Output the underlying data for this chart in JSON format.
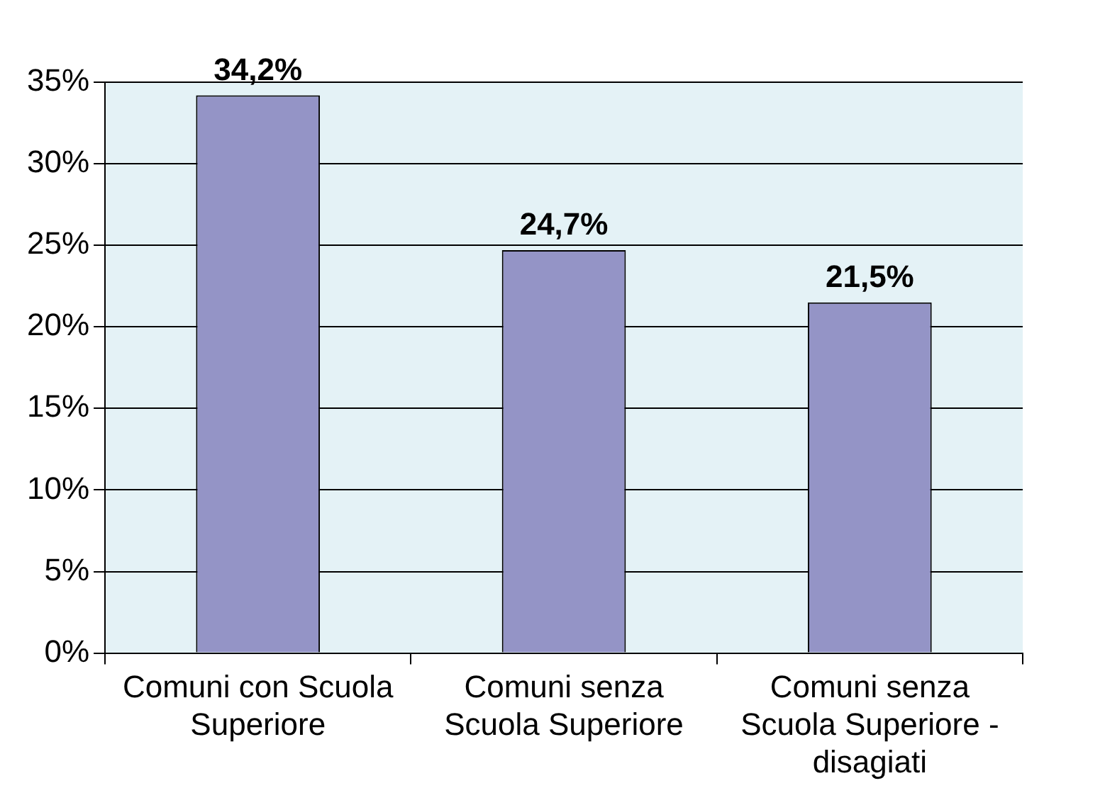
{
  "chart_data": {
    "type": "bar",
    "categories": [
      "Comuni con Scuola Superiore",
      "Comuni senza Scuola Superiore",
      "Comuni senza Scuola Superiore - disagiati"
    ],
    "values": [
      34.2,
      24.7,
      21.5
    ],
    "color": "#9494c6",
    "value_labels": [
      "34,2%",
      "24,7%",
      "21,5%"
    ],
    "ylim": [
      0,
      35
    ],
    "yticks": [
      {
        "value": 0,
        "label": "0%"
      },
      {
        "value": 5,
        "label": "5%"
      },
      {
        "value": 10,
        "label": "10%"
      },
      {
        "value": 15,
        "label": "15%"
      },
      {
        "value": 20,
        "label": "20%"
      },
      {
        "value": 25,
        "label": "25%"
      },
      {
        "value": 30,
        "label": "30%"
      },
      {
        "value": 35,
        "label": "35%"
      }
    ],
    "grid": "y"
  }
}
